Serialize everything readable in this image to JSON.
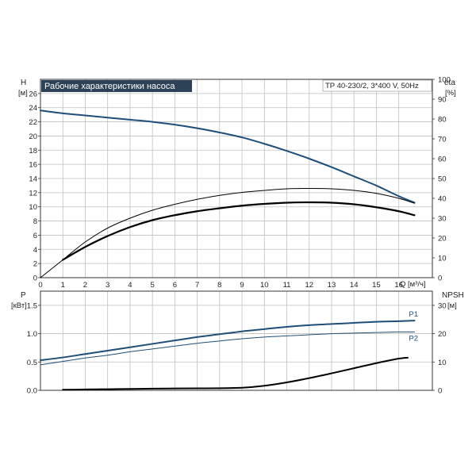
{
  "colors": {
    "head_curve": "#1f4e79",
    "p1_curve": "#1f4e79",
    "p2_curve": "#1f4e79",
    "eta_curve": "#000000",
    "npsh_curve": "#000000",
    "title_bg": "#2d4157"
  },
  "header": {
    "title": "Рабочие характеристики насоса",
    "model": "TP 40-230/2, 3*400 V, 50Hz"
  },
  "chart_data": [
    {
      "type": "line",
      "title": "Рабочие характеристики насоса",
      "xlabel": "Q [м³/ч]",
      "x_unit": "Q [м³/ч]",
      "xlim": [
        0,
        17.5
      ],
      "x_ticks": [
        "0",
        "1",
        "2",
        "3",
        "4",
        "5",
        "6",
        "7",
        "8",
        "9",
        "10",
        "11",
        "12",
        "13",
        "14",
        "15",
        "16"
      ],
      "left_axis": {
        "label": "H",
        "unit": "[м]",
        "ylim": [
          0,
          28
        ],
        "ticks": [
          "0",
          "2",
          "4",
          "6",
          "8",
          "10",
          "12",
          "14",
          "16",
          "18",
          "20",
          "22",
          "24",
          "26"
        ]
      },
      "right_axis": {
        "label": "eta",
        "unit": "[%]",
        "ylim": [
          0,
          100
        ],
        "ticks": [
          "0",
          "10",
          "20",
          "30",
          "40",
          "50",
          "60",
          "70",
          "80",
          "90",
          "100"
        ]
      },
      "series": [
        {
          "axis": "left",
          "style": "head",
          "x": [
            0,
            1,
            2,
            3,
            4,
            5,
            6,
            7,
            8,
            9,
            10,
            11,
            12,
            13,
            14,
            15,
            16,
            16.7
          ],
          "y": [
            23.6,
            23.2,
            22.9,
            22.6,
            22.3,
            22.0,
            21.6,
            21.1,
            20.5,
            19.8,
            18.9,
            17.9,
            16.8,
            15.6,
            14.3,
            13.0,
            11.5,
            10.6
          ]
        },
        {
          "axis": "right",
          "style": "eta-thin",
          "x": [
            0,
            1,
            2,
            3,
            4,
            5,
            6,
            7,
            8,
            9,
            10,
            11,
            12,
            13,
            14,
            15,
            16,
            16.7
          ],
          "y": [
            0,
            9,
            18,
            25,
            30,
            34,
            37,
            39.5,
            41.5,
            43,
            44,
            44.8,
            45,
            44.8,
            44,
            42.5,
            40,
            37.5
          ]
        },
        {
          "axis": "right",
          "style": "eta-thick",
          "x": [
            1,
            2,
            3,
            4,
            5,
            6,
            7,
            8,
            9,
            10,
            11,
            12,
            13,
            14,
            15,
            16,
            16.7
          ],
          "y": [
            9,
            15.5,
            21,
            25.5,
            29,
            31.5,
            33.5,
            35,
            36.3,
            37.2,
            37.8,
            38,
            37.8,
            37,
            35.5,
            33.5,
            31.5
          ]
        }
      ]
    },
    {
      "type": "line",
      "xlim": [
        0,
        17.5
      ],
      "left_axis": {
        "label": "P",
        "unit": "[кВт]",
        "ylim": [
          0,
          1.75
        ],
        "ticks": [
          "0.0",
          "0.5",
          "1.0",
          "1.5"
        ]
      },
      "right_axis": {
        "label": "NPSH",
        "unit": "[м]",
        "ylim": [
          0,
          35
        ],
        "ticks": [
          "0",
          "10",
          "20",
          "30"
        ]
      },
      "series": [
        {
          "name": "P1",
          "axis": "left",
          "style": "p1",
          "x": [
            0,
            1,
            2,
            3,
            4,
            5,
            6,
            7,
            8,
            9,
            10,
            11,
            12,
            13,
            14,
            15,
            16,
            16.7
          ],
          "y": [
            0.53,
            0.58,
            0.64,
            0.7,
            0.76,
            0.82,
            0.88,
            0.94,
            0.99,
            1.04,
            1.08,
            1.12,
            1.15,
            1.17,
            1.19,
            1.21,
            1.22,
            1.23
          ]
        },
        {
          "name": "P2",
          "axis": "left",
          "style": "p2",
          "x": [
            0,
            1,
            2,
            3,
            4,
            5,
            6,
            7,
            8,
            9,
            10,
            11,
            12,
            13,
            14,
            15,
            16,
            16.7
          ],
          "y": [
            0.45,
            0.51,
            0.57,
            0.62,
            0.68,
            0.73,
            0.78,
            0.83,
            0.87,
            0.91,
            0.94,
            0.96,
            0.98,
            1.0,
            1.01,
            1.02,
            1.03,
            1.03
          ]
        },
        {
          "axis": "right",
          "style": "npsh",
          "x": [
            1,
            2,
            3,
            4,
            5,
            6,
            7,
            8,
            9,
            10,
            11,
            12,
            13,
            14,
            15,
            16,
            16.4
          ],
          "y": [
            0.2,
            0.3,
            0.4,
            0.5,
            0.6,
            0.65,
            0.7,
            0.75,
            0.9,
            1.6,
            2.8,
            4.3,
            6.0,
            7.8,
            9.6,
            11.2,
            11.5
          ]
        }
      ]
    }
  ]
}
